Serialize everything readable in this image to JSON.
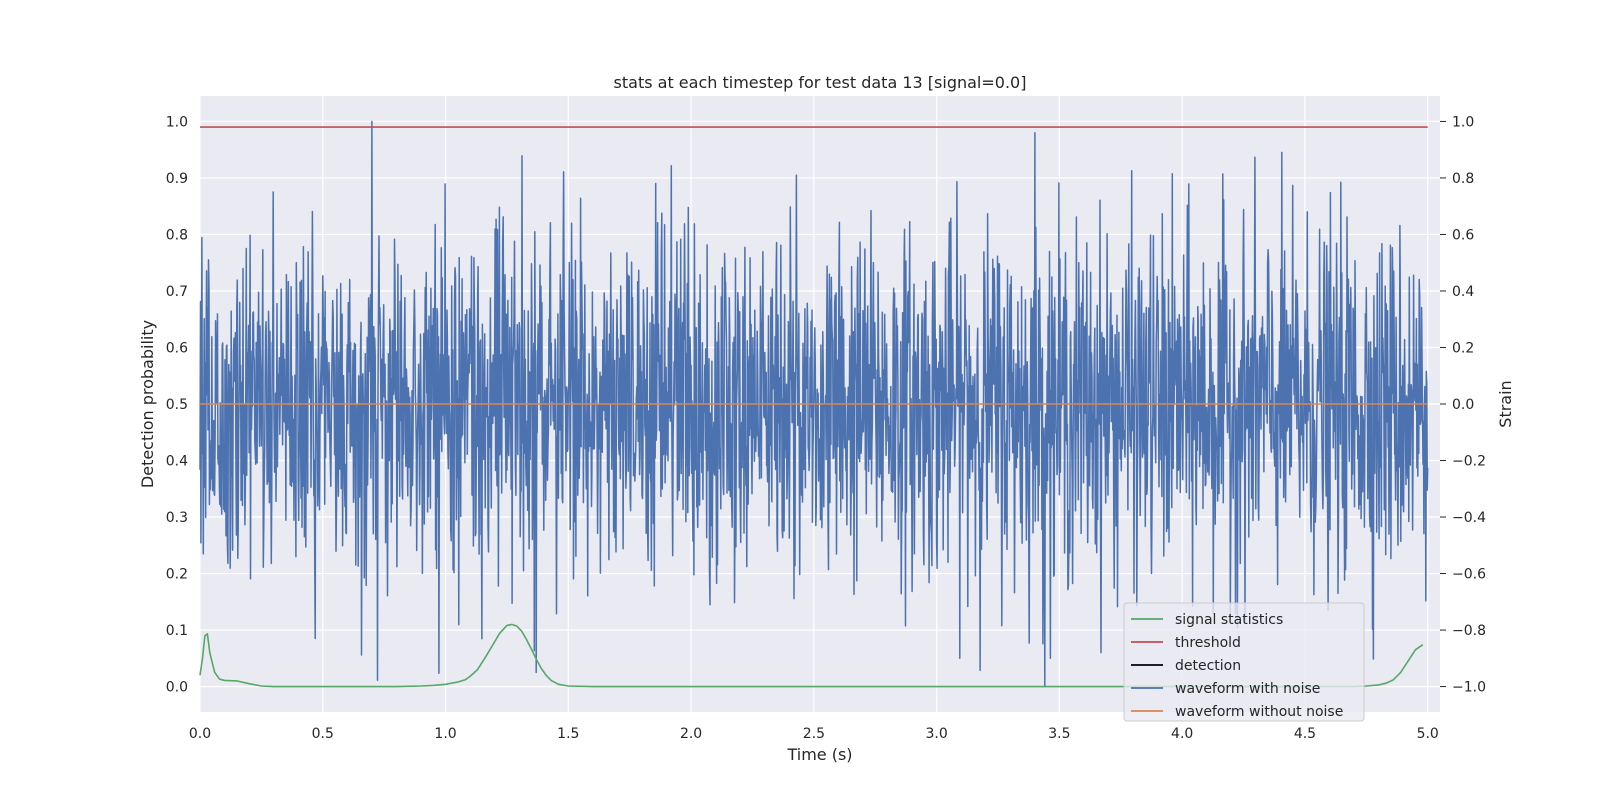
{
  "chart_data": {
    "type": "line",
    "title": "stats at each timestep for test data 13 [signal=0.0]",
    "xlabel": "Time (s)",
    "ylabel": "Detection probability",
    "y2label": "Strain",
    "xlim": [
      0.0,
      5.05
    ],
    "ylim": [
      -0.045,
      1.045
    ],
    "y2lim": [
      -1.09,
      1.09
    ],
    "grid": true,
    "x_ticks": [
      "0.0",
      "0.5",
      "1.0",
      "1.5",
      "2.0",
      "2.5",
      "3.0",
      "3.5",
      "4.0",
      "4.5",
      "5.0"
    ],
    "y_ticks": [
      "0.0",
      "0.1",
      "0.2",
      "0.3",
      "0.4",
      "0.5",
      "0.6",
      "0.7",
      "0.8",
      "0.9",
      "1.0"
    ],
    "y2_ticks": [
      "−1.0",
      "−0.8",
      "−0.6",
      "−0.4",
      "−0.2",
      "0.0",
      "0.2",
      "0.4",
      "0.6",
      "0.8",
      "1.0"
    ],
    "legend_position": "lower-right",
    "series": [
      {
        "name": "signal statistics",
        "axis": "left",
        "color": "#55a868",
        "x": [
          0.0,
          0.01,
          0.02,
          0.03,
          0.04,
          0.06,
          0.08,
          0.1,
          0.15,
          0.2,
          0.25,
          0.3,
          0.4,
          0.5,
          0.6,
          0.7,
          0.8,
          0.9,
          0.95,
          1.0,
          1.05,
          1.08,
          1.1,
          1.13,
          1.16,
          1.19,
          1.22,
          1.25,
          1.27,
          1.29,
          1.31,
          1.33,
          1.35,
          1.37,
          1.39,
          1.41,
          1.43,
          1.46,
          1.5,
          1.6,
          2.0,
          2.5,
          3.0,
          3.5,
          4.0,
          4.5,
          4.7,
          4.75,
          4.8,
          4.83,
          4.86,
          4.89,
          4.92,
          4.95,
          4.98
        ],
        "y": [
          0.02,
          0.05,
          0.09,
          0.093,
          0.06,
          0.025,
          0.013,
          0.011,
          0.01,
          0.005,
          0.001,
          0.0,
          0.0,
          0.0,
          0.0,
          0.0,
          0.0,
          0.001,
          0.002,
          0.004,
          0.008,
          0.012,
          0.018,
          0.03,
          0.05,
          0.072,
          0.094,
          0.108,
          0.11,
          0.107,
          0.098,
          0.083,
          0.066,
          0.048,
          0.032,
          0.02,
          0.011,
          0.004,
          0.001,
          0.0,
          0.0,
          0.0,
          0.0,
          0.0,
          0.0,
          0.0,
          0.0,
          0.001,
          0.003,
          0.006,
          0.012,
          0.025,
          0.045,
          0.065,
          0.074
        ]
      },
      {
        "name": "threshold",
        "axis": "left",
        "color": "#c44e52",
        "x": [
          0.0,
          5.0
        ],
        "y": [
          0.99,
          0.99
        ]
      },
      {
        "name": "detection",
        "axis": "left",
        "color": "#000000",
        "x": [],
        "y": []
      },
      {
        "name": "waveform with noise",
        "axis": "right",
        "color": "#4c72b0",
        "style": "dense noise",
        "x_range": [
          0.0,
          5.0
        ],
        "y_range": [
          -1.0,
          1.0
        ],
        "typical_amplitude": 0.3,
        "notable_peaks": [
          {
            "x": 0.7,
            "y": 1.0
          },
          {
            "x": 3.4,
            "y": 0.96
          },
          {
            "x": 3.44,
            "y": -1.0
          },
          {
            "x": 0.47,
            "y": -0.83
          },
          {
            "x": 1.37,
            "y": -0.95
          }
        ]
      },
      {
        "name": "waveform without noise",
        "axis": "right",
        "color": "#dd8452",
        "x": [
          0.0,
          5.0
        ],
        "y": [
          0.0,
          0.0
        ]
      }
    ]
  }
}
